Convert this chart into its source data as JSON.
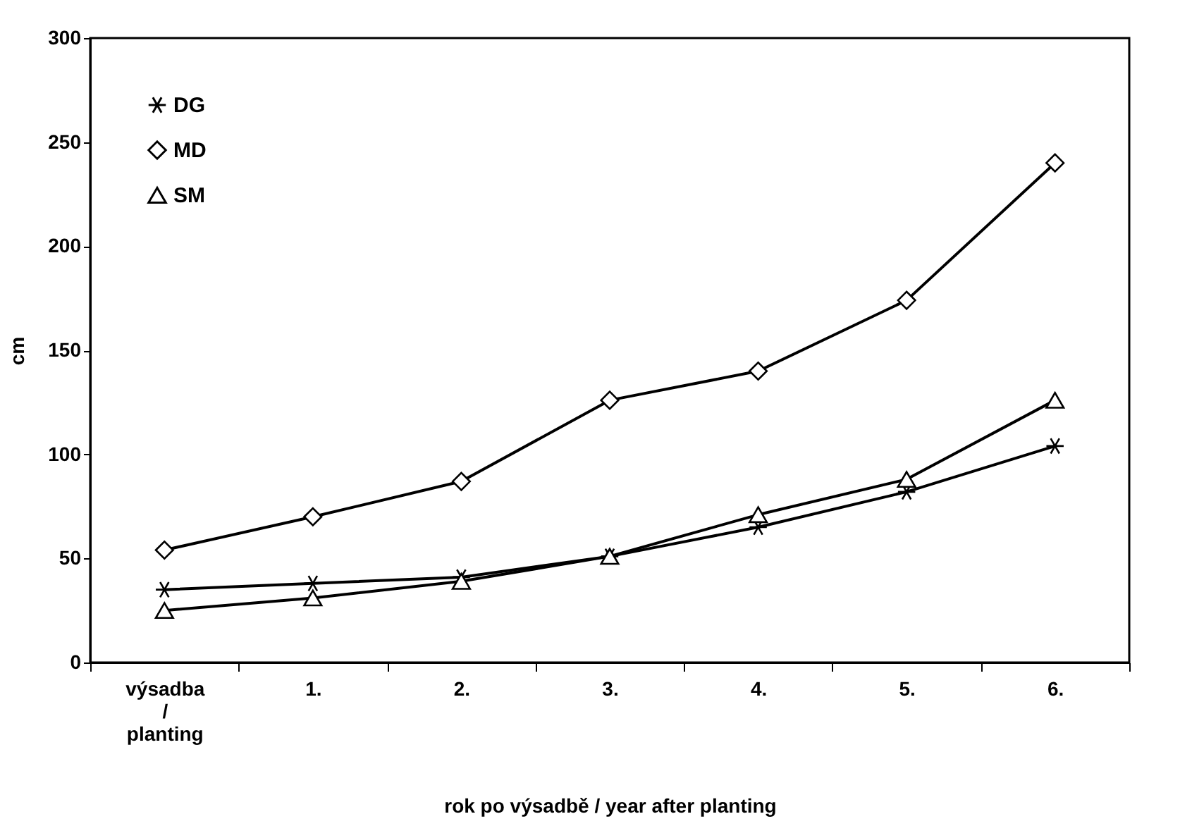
{
  "chart_data": {
    "type": "line",
    "xlabel": "rok po výsadbě / year after planting",
    "ylabel": "cm",
    "categories": [
      "výsadba / planting",
      "1.",
      "2.",
      "3.",
      "4.",
      "5.",
      "6."
    ],
    "series": [
      {
        "name": "DG",
        "color": "#000000",
        "marker": "cross",
        "values": [
          35,
          38,
          41,
          51,
          65,
          82,
          104
        ]
      },
      {
        "name": "MD",
        "color": "#000000",
        "marker": "diamond",
        "values": [
          54,
          70,
          87,
          126,
          140,
          174,
          240
        ]
      },
      {
        "name": "SM",
        "color": "#000000",
        "marker": "triangle",
        "values": [
          25,
          31,
          39,
          51,
          71,
          88,
          126
        ]
      }
    ],
    "ylim": [
      0,
      300
    ],
    "yticks": [
      0,
      50,
      100,
      150,
      200,
      250,
      300
    ],
    "grid": false,
    "legend": "top left",
    "line_style": "solid"
  }
}
